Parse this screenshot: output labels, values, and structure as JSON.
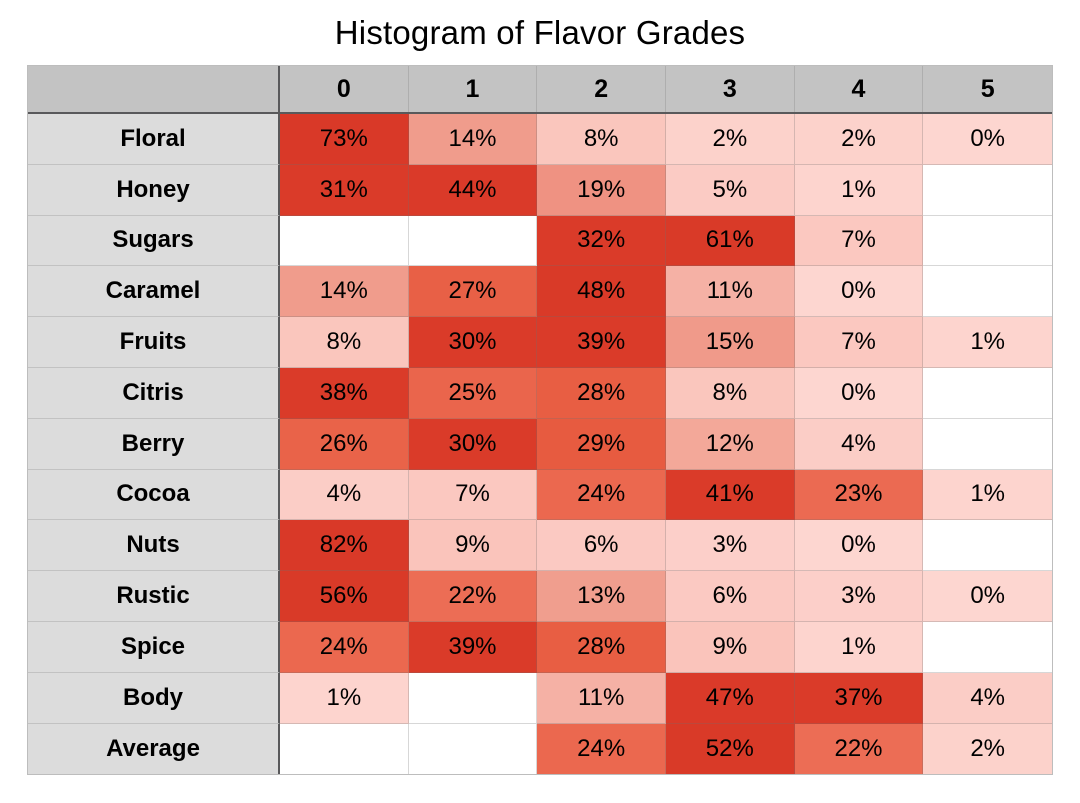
{
  "title": "Histogram of Flavor Grades",
  "colors": {
    "header_bg": "#c3c3c3",
    "label_bg": "#dcdcdc",
    "dark_border": "#59595b",
    "grid_border": "#c2c2c2",
    "blank_cell": "#ffffff",
    "heat_ramp": [
      [
        0,
        [
          253,
          214,
          208
        ]
      ],
      [
        5,
        [
          251,
          203,
          196
        ]
      ],
      [
        9,
        [
          250,
          196,
          187
        ]
      ],
      [
        13,
        [
          240,
          158,
          142
        ]
      ],
      [
        19,
        [
          239,
          146,
          130
        ]
      ],
      [
        22,
        [
          236,
          109,
          85
        ]
      ],
      [
        29,
        [
          231,
          91,
          64
        ]
      ],
      [
        30,
        [
          218,
          59,
          41
        ]
      ],
      [
        100,
        [
          216,
          56,
          39
        ]
      ]
    ]
  },
  "chart_data": {
    "type": "heatmap",
    "title": "Histogram of Flavor Grades",
    "unit": "%",
    "x_categories": [
      "0",
      "1",
      "2",
      "3",
      "4",
      "5"
    ],
    "y_categories": [
      "Floral",
      "Honey",
      "Sugars",
      "Caramel",
      "Fruits",
      "Citris",
      "Berry",
      "Cocoa",
      "Nuts",
      "Rustic",
      "Spice",
      "Body",
      "Average"
    ],
    "values": [
      [
        73,
        14,
        8,
        2,
        2,
        0
      ],
      [
        31,
        44,
        19,
        5,
        1,
        null
      ],
      [
        null,
        null,
        32,
        61,
        7,
        null
      ],
      [
        14,
        27,
        48,
        11,
        0,
        null
      ],
      [
        8,
        30,
        39,
        15,
        7,
        1
      ],
      [
        38,
        25,
        28,
        8,
        0,
        null
      ],
      [
        26,
        30,
        29,
        12,
        4,
        null
      ],
      [
        4,
        7,
        24,
        41,
        23,
        1
      ],
      [
        82,
        9,
        6,
        3,
        0,
        null
      ],
      [
        56,
        22,
        13,
        6,
        3,
        0
      ],
      [
        24,
        39,
        28,
        9,
        1,
        null
      ],
      [
        1,
        null,
        11,
        47,
        37,
        4
      ],
      [
        null,
        null,
        24,
        52,
        22,
        2
      ]
    ],
    "color_scale": "white-to-red, saturating at ~30%",
    "legend": "none",
    "layout": "row labels left, grade columns 0-5 top"
  }
}
